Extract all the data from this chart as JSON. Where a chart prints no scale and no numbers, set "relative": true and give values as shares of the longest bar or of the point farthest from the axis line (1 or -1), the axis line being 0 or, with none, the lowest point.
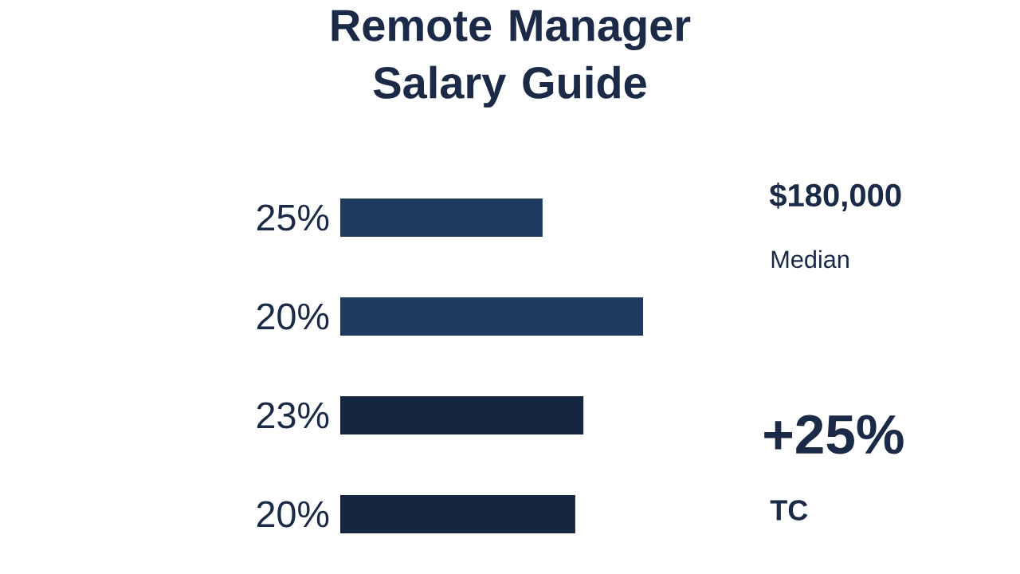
{
  "chart_data": {
    "type": "bar",
    "orientation": "horizontal",
    "relative": true,
    "title": "Remote Manager Salary Guide",
    "categories": [
      "25%",
      "20%",
      "23%",
      "20%"
    ],
    "values": [
      0.668,
      1,
      0.803,
      0.776
    ],
    "colors": [
      "#1e3a5f",
      "#1e3a5f",
      "#172640",
      "#172640"
    ],
    "annotations": [
      "$180,000",
      "Median",
      "+25%",
      "TC"
    ]
  }
}
